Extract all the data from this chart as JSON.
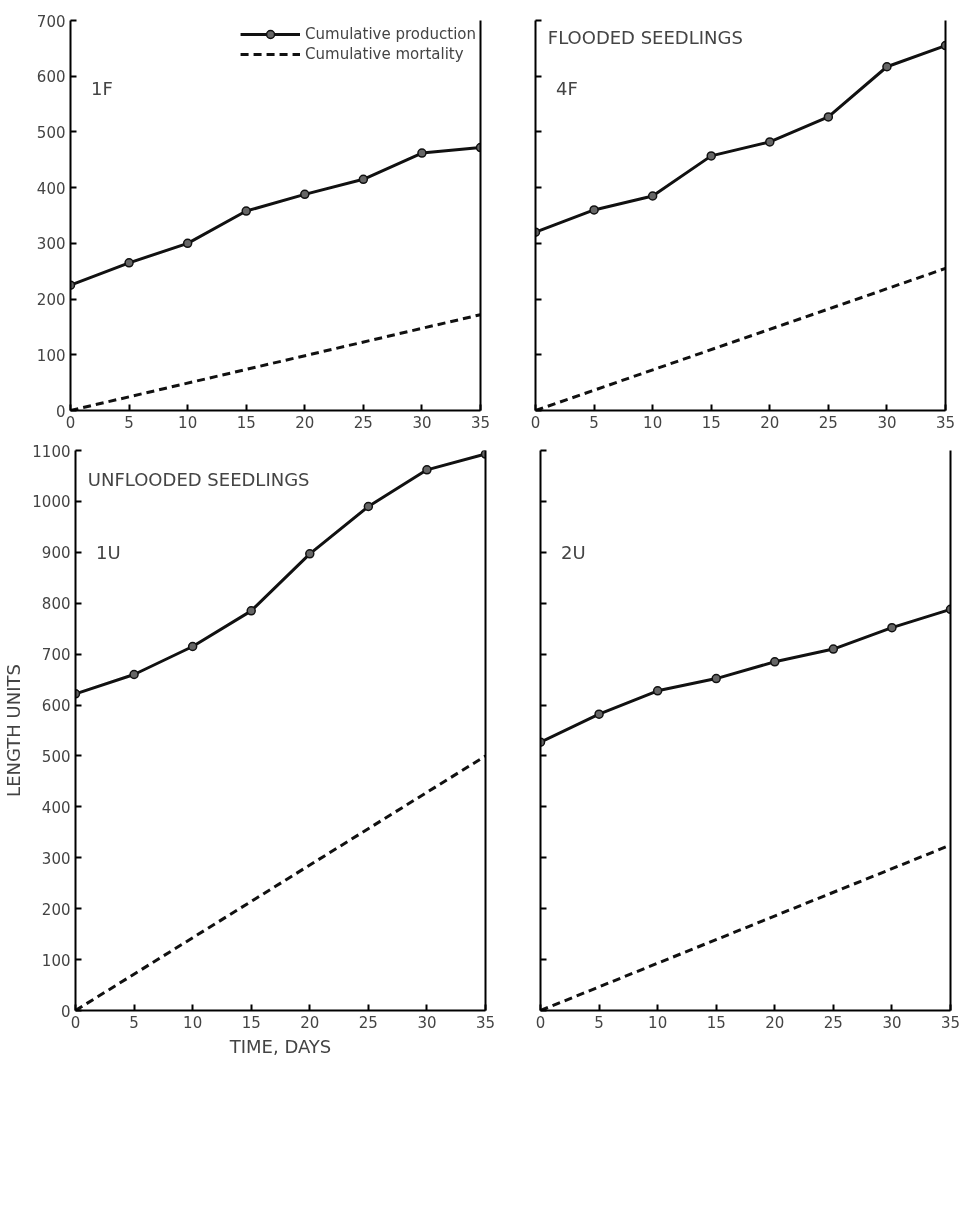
{
  "chart_data": [
    {
      "type": "line",
      "annotations": [
        "1F"
      ],
      "xlim": [
        0,
        35
      ],
      "xticks": [
        0,
        5,
        10,
        15,
        20,
        25,
        30,
        35
      ],
      "ylim": [
        0,
        700
      ],
      "yticks": [
        0,
        100,
        200,
        300,
        400,
        500,
        600,
        700
      ],
      "grid": false,
      "legend": "top right",
      "series": [
        {
          "name": "Cumulative production",
          "color": "#111111",
          "marker": "circle",
          "line_style": "solid",
          "x": [
            0,
            5,
            10,
            15,
            20,
            25,
            30,
            35
          ],
          "values": [
            225,
            265,
            300,
            358,
            388,
            415,
            462,
            472
          ]
        },
        {
          "name": "Cumulative mortality",
          "color": "#111111",
          "marker": "none",
          "line_style": "dashed",
          "x": [
            0,
            35
          ],
          "values": [
            0,
            172
          ]
        }
      ]
    },
    {
      "type": "line",
      "annotations": [
        "4F",
        "FLOODED SEEDLINGS"
      ],
      "xlim": [
        0,
        35
      ],
      "xticks": [
        0,
        5,
        10,
        15,
        20,
        25,
        30,
        35
      ],
      "ylim": [
        0,
        700
      ],
      "yticks": [
        {
          "value": 0,
          "label": null
        },
        {
          "value": 100,
          "label": null
        },
        {
          "value": 200,
          "label": null
        },
        {
          "value": 300,
          "label": null
        },
        {
          "value": 400,
          "label": null
        },
        {
          "value": 500,
          "label": null
        },
        {
          "value": 600,
          "label": null
        },
        {
          "value": 700,
          "label": null
        }
      ],
      "grid": false,
      "tick_labels": "x",
      "series": [
        {
          "color": "#111111",
          "marker": "circle",
          "line_style": "solid",
          "x": [
            0,
            5,
            10,
            15,
            20,
            25,
            30,
            35
          ],
          "values": [
            320,
            360,
            385,
            457,
            482,
            527,
            617,
            655
          ]
        },
        {
          "color": "#111111",
          "marker": "none",
          "line_style": "dashed",
          "x": [
            0,
            35
          ],
          "values": [
            0,
            255
          ]
        }
      ]
    },
    {
      "type": "line",
      "annotations": [
        "1U",
        "UNFLOODED SEEDLINGS"
      ],
      "xlabel": "TIME, DAYS",
      "ylabel": "LENGTH UNITS",
      "xlim": [
        0,
        35
      ],
      "xticks": [
        0,
        5,
        10,
        15,
        20,
        25,
        30,
        35
      ],
      "ylim": [
        0,
        1100
      ],
      "yticks": [
        0,
        100,
        200,
        300,
        400,
        500,
        600,
        700,
        800,
        900,
        1000,
        1100
      ],
      "grid": false,
      "series": [
        {
          "color": "#111111",
          "marker": "circle",
          "line_style": "solid",
          "x": [
            0,
            5,
            10,
            15,
            20,
            25,
            30,
            35
          ],
          "values": [
            622,
            660,
            715,
            785,
            897,
            990,
            1062,
            1093
          ]
        },
        {
          "color": "#111111",
          "marker": "none",
          "line_style": "dashed",
          "x": [
            0,
            35
          ],
          "values": [
            0,
            500
          ]
        }
      ]
    },
    {
      "type": "line",
      "annotations": [
        "2U"
      ],
      "xlim": [
        0,
        35
      ],
      "xticks": [
        0,
        5,
        10,
        15,
        20,
        25,
        30,
        35
      ],
      "ylim": [
        0,
        1100
      ],
      "yticks": [
        {
          "value": 0,
          "label": null
        },
        {
          "value": 100,
          "label": null
        },
        {
          "value": 200,
          "label": null
        },
        {
          "value": 300,
          "label": null
        },
        {
          "value": 400,
          "label": null
        },
        {
          "value": 500,
          "label": null
        },
        {
          "value": 600,
          "label": null
        },
        {
          "value": 700,
          "label": null
        },
        {
          "value": 800,
          "label": null
        },
        {
          "value": 900,
          "label": null
        },
        {
          "value": 1000,
          "label": null
        },
        {
          "value": 1100,
          "label": null
        }
      ],
      "grid": false,
      "tick_labels": "x",
      "series": [
        {
          "color": "#111111",
          "marker": "circle",
          "line_style": "solid",
          "x": [
            0,
            5,
            10,
            15,
            20,
            25,
            30,
            35
          ],
          "values": [
            527,
            582,
            628,
            652,
            685,
            710,
            752,
            788
          ]
        },
        {
          "color": "#111111",
          "marker": "none",
          "line_style": "dashed",
          "x": [
            0,
            35
          ],
          "values": [
            0,
            325
          ]
        }
      ]
    }
  ]
}
